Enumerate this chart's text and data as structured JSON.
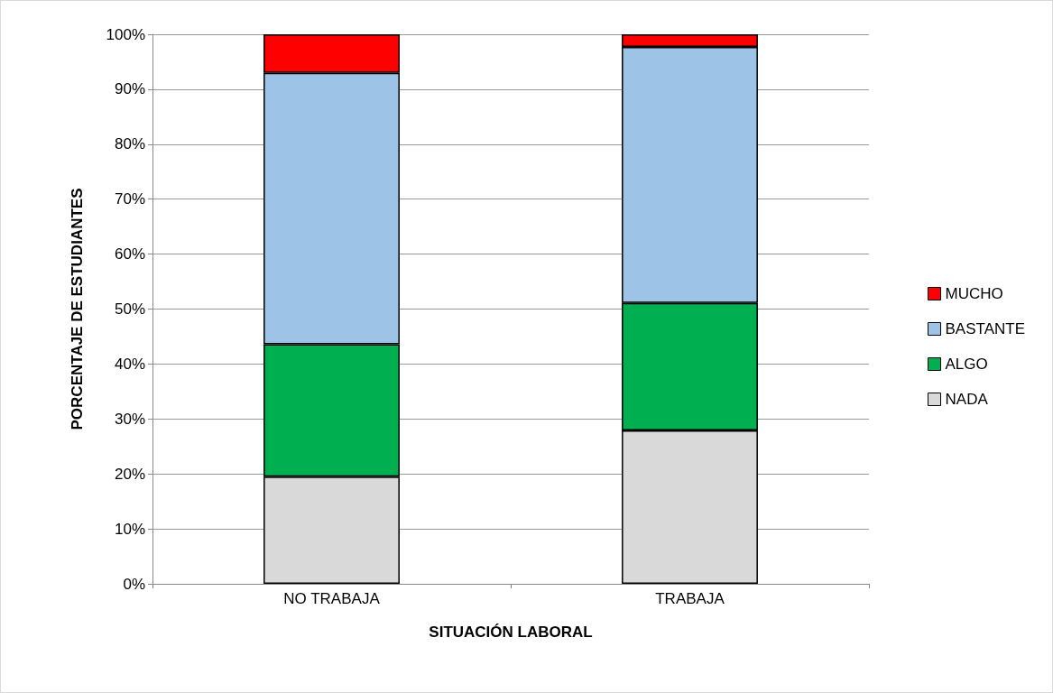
{
  "chart_data": {
    "type": "bar",
    "stacked": true,
    "xlabel": "SITUACIÓN LABORAL",
    "ylabel": "PORCENTAJE DE ESTUDIANTES",
    "categories": [
      "NO TRABAJA",
      "TRABAJA"
    ],
    "series": [
      {
        "name": "NADA",
        "color": "#d9d9d9",
        "values": [
          19.5,
          27.9
        ]
      },
      {
        "name": "ALGO",
        "color": "#00b050",
        "values": [
          24.1,
          23.2
        ]
      },
      {
        "name": "BASTANTE",
        "color": "#9dc3e6",
        "values": [
          49.4,
          46.6
        ]
      },
      {
        "name": "MUCHO",
        "color": "#ff0000",
        "values": [
          7.0,
          2.3
        ]
      }
    ],
    "ylim": [
      0,
      100
    ],
    "yticks": [
      {
        "value": 0,
        "label": "0%"
      },
      {
        "value": 10,
        "label": "10%"
      },
      {
        "value": 20,
        "label": "20%"
      },
      {
        "value": 30,
        "label": "30%"
      },
      {
        "value": 40,
        "label": "40%"
      },
      {
        "value": 50,
        "label": "50%"
      },
      {
        "value": 60,
        "label": "60%"
      },
      {
        "value": 70,
        "label": "70%"
      },
      {
        "value": 80,
        "label": "80%"
      },
      {
        "value": 90,
        "label": "90%"
      },
      {
        "value": 100,
        "label": "100%"
      }
    ],
    "grid": true,
    "legend": "right"
  }
}
